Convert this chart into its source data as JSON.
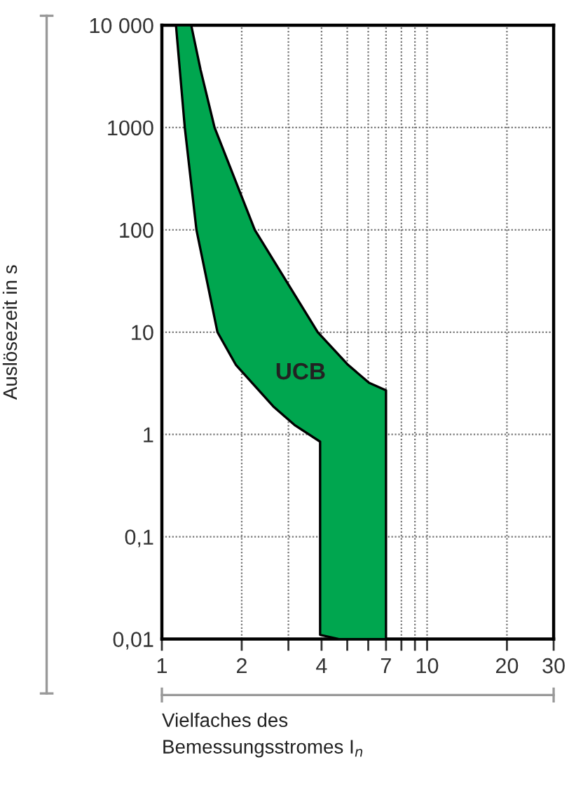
{
  "chart_data": {
    "type": "area",
    "xlabel": "Vielfaches des\nBemessungsstromes I$_{n}$",
    "ylabel": "Auslösezeit in s",
    "log": "xy",
    "xlim": [
      1,
      30
    ],
    "ylim": [
      0.01,
      10000
    ],
    "xticks": [
      1,
      2,
      {
        "value": 3,
        "label": null
      },
      4,
      {
        "value": 5,
        "label": null
      },
      {
        "value": 6,
        "label": null
      },
      7,
      {
        "value": 8,
        "label": null
      },
      {
        "value": 9,
        "label": null
      },
      10,
      20,
      30
    ],
    "yticks": [
      {
        "value": 0.01,
        "label": "0,01"
      },
      {
        "value": 0.1,
        "label": "0,1"
      },
      1,
      10,
      100,
      1000,
      {
        "value": 10000,
        "label": "10 000"
      }
    ],
    "grid": true,
    "series": [
      {
        "color": "#00a64f",
        "x": [
          1.13,
          1.22,
          1.35,
          1.62,
          1.9,
          2.63,
          3.16,
          3.95,
          3.95,
          4.65,
          7,
          7,
          6.04,
          5.03,
          3.87,
          2.24,
          1.58,
          1.4,
          1.29
        ],
        "values": [
          10000,
          1000,
          100,
          10,
          4.8,
          1.88,
          1.24,
          0.85,
          0.011,
          0.01,
          0.01,
          2.7,
          3.2,
          4.8,
          10,
          100,
          1000,
          3650,
          10000
        ]
      }
    ],
    "annotations": [
      "UCB"
    ]
  }
}
